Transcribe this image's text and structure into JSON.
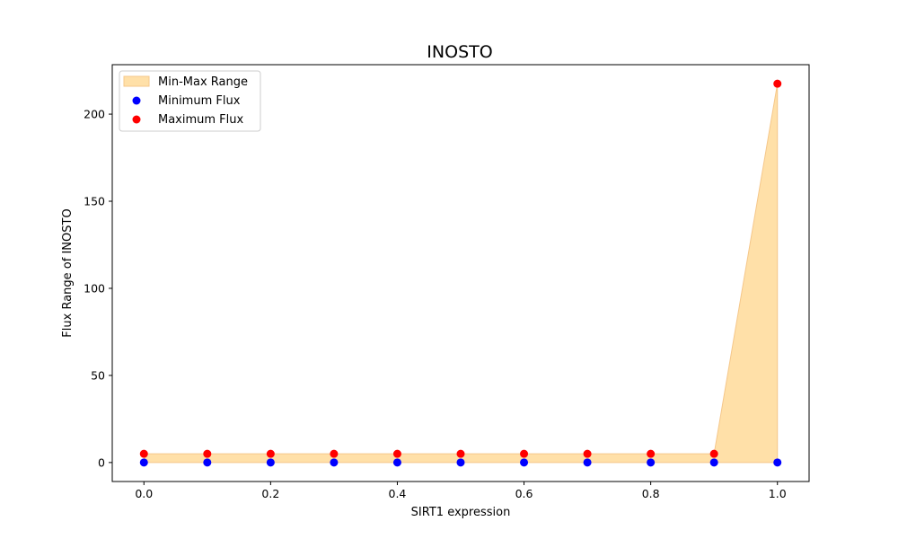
{
  "chart_data": {
    "type": "scatter",
    "title": "INOSTO",
    "xlabel": "SIRT1 expression",
    "ylabel": "Flux Range of INOSTO",
    "x": [
      0.0,
      0.1,
      0.2,
      0.3,
      0.4,
      0.5,
      0.6,
      0.7,
      0.8,
      0.9,
      1.0
    ],
    "series": [
      {
        "name": "Minimum Flux",
        "color": "#0000ff",
        "values": [
          0,
          0,
          0,
          0,
          0,
          0,
          0,
          0,
          0,
          0,
          0
        ]
      },
      {
        "name": "Maximum Flux",
        "color": "#ff0000",
        "values": [
          5,
          5,
          5,
          5,
          5,
          5,
          5,
          5,
          5,
          5,
          217.5
        ]
      }
    ],
    "fill": {
      "name": "Min-Max Range",
      "color": "#ffe0a8",
      "edge": "#f5c78a"
    },
    "xticks": [
      "0.0",
      "0.2",
      "0.4",
      "0.6",
      "0.8",
      "1.0"
    ],
    "yticks": [
      "0",
      "50",
      "100",
      "150",
      "200"
    ],
    "xlim": [
      -0.05,
      1.05
    ],
    "ylim": [
      -10.9,
      228.4
    ],
    "grid": false,
    "legend_position": "top-left"
  }
}
